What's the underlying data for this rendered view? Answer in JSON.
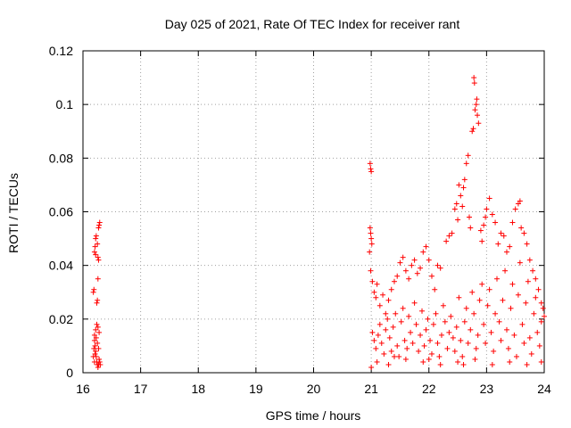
{
  "chart_data": {
    "type": "scatter",
    "title": "Day 025 of 2021, Rate Of TEC Index for receiver rant",
    "xlabel": "GPS time / hours",
    "ylabel": "ROTI / TECUs",
    "xlim": [
      16,
      24
    ],
    "ylim": [
      0,
      0.12
    ],
    "xticks": [
      16,
      17,
      18,
      19,
      20,
      21,
      22,
      23,
      24
    ],
    "yticks": [
      0,
      0.02,
      0.04,
      0.06,
      0.08,
      0.1,
      0.12
    ],
    "ytick_labels": [
      "0",
      "0.02",
      "0.04",
      "0.06",
      "0.08",
      "0.1",
      "0.12"
    ],
    "grid": true,
    "marker": "+",
    "color": "#ff0000",
    "series": [
      {
        "name": "ROTI",
        "points": [
          [
            16.18,
            0.03
          ],
          [
            16.19,
            0.031
          ],
          [
            16.2,
            0.045
          ],
          [
            16.21,
            0.047
          ],
          [
            16.22,
            0.05
          ],
          [
            16.23,
            0.051
          ],
          [
            16.22,
            0.044
          ],
          [
            16.25,
            0.048
          ],
          [
            16.26,
            0.043
          ],
          [
            16.27,
            0.042
          ],
          [
            16.28,
            0.055
          ],
          [
            16.29,
            0.056
          ],
          [
            16.27,
            0.054
          ],
          [
            16.24,
            0.026
          ],
          [
            16.25,
            0.027
          ],
          [
            16.26,
            0.035
          ],
          [
            16.2,
            0.012
          ],
          [
            16.21,
            0.01
          ],
          [
            16.22,
            0.008
          ],
          [
            16.23,
            0.006
          ],
          [
            16.24,
            0.004
          ],
          [
            16.25,
            0.003
          ],
          [
            16.26,
            0.002
          ],
          [
            16.27,
            0.003
          ],
          [
            16.28,
            0.005
          ],
          [
            16.2,
            0.014
          ],
          [
            16.22,
            0.016
          ],
          [
            16.24,
            0.018
          ],
          [
            16.26,
            0.017
          ],
          [
            16.28,
            0.015
          ],
          [
            16.19,
            0.009
          ],
          [
            16.21,
            0.007
          ],
          [
            16.23,
            0.013
          ],
          [
            16.25,
            0.011
          ],
          [
            16.27,
            0.009
          ],
          [
            16.29,
            0.004
          ],
          [
            16.3,
            0.003
          ],
          [
            16.18,
            0.006
          ],
          [
            16.2,
            0.004
          ],
          [
            20.98,
            0.078
          ],
          [
            20.99,
            0.076
          ],
          [
            21.0,
            0.075
          ],
          [
            20.98,
            0.054
          ],
          [
            20.99,
            0.052
          ],
          [
            21.0,
            0.05
          ],
          [
            21.01,
            0.048
          ],
          [
            20.97,
            0.045
          ],
          [
            20.99,
            0.038
          ],
          [
            21.02,
            0.034
          ],
          [
            21.05,
            0.03
          ],
          [
            21.08,
            0.028
          ],
          [
            21.1,
            0.033
          ],
          [
            21.15,
            0.025
          ],
          [
            21.2,
            0.029
          ],
          [
            21.25,
            0.022
          ],
          [
            21.3,
            0.027
          ],
          [
            21.35,
            0.031
          ],
          [
            21.4,
            0.034
          ],
          [
            21.45,
            0.036
          ],
          [
            21.5,
            0.041
          ],
          [
            21.55,
            0.043
          ],
          [
            21.6,
            0.038
          ],
          [
            21.65,
            0.035
          ],
          [
            21.7,
            0.04
          ],
          [
            21.75,
            0.042
          ],
          [
            21.8,
            0.037
          ],
          [
            21.85,
            0.039
          ],
          [
            21.9,
            0.045
          ],
          [
            21.95,
            0.047
          ],
          [
            22.0,
            0.042
          ],
          [
            22.05,
            0.036
          ],
          [
            22.1,
            0.031
          ],
          [
            22.15,
            0.04
          ],
          [
            22.2,
            0.039
          ],
          [
            22.3,
            0.049
          ],
          [
            22.35,
            0.051
          ],
          [
            22.4,
            0.052
          ],
          [
            22.45,
            0.061
          ],
          [
            22.48,
            0.063
          ],
          [
            22.5,
            0.057
          ],
          [
            22.52,
            0.07
          ],
          [
            22.55,
            0.066
          ],
          [
            22.58,
            0.062
          ],
          [
            22.6,
            0.069
          ],
          [
            22.62,
            0.072
          ],
          [
            22.65,
            0.078
          ],
          [
            22.68,
            0.081
          ],
          [
            22.7,
            0.058
          ],
          [
            22.72,
            0.054
          ],
          [
            22.75,
            0.09
          ],
          [
            22.77,
            0.091
          ],
          [
            22.8,
            0.098
          ],
          [
            22.82,
            0.1
          ],
          [
            22.83,
            0.102
          ],
          [
            22.84,
            0.096
          ],
          [
            22.78,
            0.11
          ],
          [
            22.79,
            0.108
          ],
          [
            22.86,
            0.093
          ],
          [
            22.9,
            0.053
          ],
          [
            22.92,
            0.049
          ],
          [
            22.95,
            0.055
          ],
          [
            22.98,
            0.058
          ],
          [
            23.0,
            0.061
          ],
          [
            23.05,
            0.065
          ],
          [
            23.1,
            0.059
          ],
          [
            23.15,
            0.056
          ],
          [
            23.2,
            0.048
          ],
          [
            23.25,
            0.052
          ],
          [
            23.3,
            0.051
          ],
          [
            23.35,
            0.045
          ],
          [
            23.4,
            0.047
          ],
          [
            23.45,
            0.056
          ],
          [
            23.5,
            0.061
          ],
          [
            23.55,
            0.063
          ],
          [
            23.58,
            0.064
          ],
          [
            23.6,
            0.054
          ],
          [
            23.65,
            0.052
          ],
          [
            23.7,
            0.048
          ],
          [
            23.75,
            0.042
          ],
          [
            23.8,
            0.038
          ],
          [
            23.85,
            0.035
          ],
          [
            23.9,
            0.031
          ],
          [
            23.95,
            0.026
          ],
          [
            24.0,
            0.021
          ],
          [
            21.02,
            0.015
          ],
          [
            21.05,
            0.012
          ],
          [
            21.08,
            0.009
          ],
          [
            21.12,
            0.014
          ],
          [
            21.15,
            0.018
          ],
          [
            21.18,
            0.011
          ],
          [
            21.22,
            0.007
          ],
          [
            21.25,
            0.016
          ],
          [
            21.28,
            0.02
          ],
          [
            21.32,
            0.013
          ],
          [
            21.35,
            0.008
          ],
          [
            21.38,
            0.017
          ],
          [
            21.42,
            0.022
          ],
          [
            21.45,
            0.01
          ],
          [
            21.48,
            0.006
          ],
          [
            21.52,
            0.019
          ],
          [
            21.55,
            0.024
          ],
          [
            21.58,
            0.012
          ],
          [
            21.62,
            0.009
          ],
          [
            21.65,
            0.021
          ],
          [
            21.68,
            0.015
          ],
          [
            21.72,
            0.011
          ],
          [
            21.75,
            0.026
          ],
          [
            21.78,
            0.018
          ],
          [
            21.82,
            0.008
          ],
          [
            21.85,
            0.014
          ],
          [
            21.88,
            0.023
          ],
          [
            21.92,
            0.01
          ],
          [
            21.95,
            0.016
          ],
          [
            21.98,
            0.02
          ],
          [
            22.02,
            0.012
          ],
          [
            22.05,
            0.007
          ],
          [
            22.08,
            0.018
          ],
          [
            22.12,
            0.022
          ],
          [
            22.15,
            0.011
          ],
          [
            22.18,
            0.006
          ],
          [
            22.22,
            0.014
          ],
          [
            22.25,
            0.025
          ],
          [
            22.28,
            0.019
          ],
          [
            22.32,
            0.009
          ],
          [
            22.35,
            0.015
          ],
          [
            22.38,
            0.021
          ],
          [
            22.42,
            0.013
          ],
          [
            22.45,
            0.008
          ],
          [
            22.48,
            0.017
          ],
          [
            22.52,
            0.028
          ],
          [
            22.55,
            0.012
          ],
          [
            22.58,
            0.006
          ],
          [
            22.62,
            0.019
          ],
          [
            22.65,
            0.024
          ],
          [
            22.68,
            0.011
          ],
          [
            22.72,
            0.016
          ],
          [
            22.75,
            0.03
          ],
          [
            22.78,
            0.022
          ],
          [
            22.82,
            0.009
          ],
          [
            22.85,
            0.014
          ],
          [
            22.88,
            0.027
          ],
          [
            22.92,
            0.033
          ],
          [
            22.95,
            0.018
          ],
          [
            22.98,
            0.011
          ],
          [
            23.02,
            0.025
          ],
          [
            23.05,
            0.031
          ],
          [
            23.08,
            0.015
          ],
          [
            23.12,
            0.008
          ],
          [
            23.15,
            0.022
          ],
          [
            23.18,
            0.035
          ],
          [
            23.22,
            0.019
          ],
          [
            23.25,
            0.012
          ],
          [
            23.28,
            0.027
          ],
          [
            23.32,
            0.038
          ],
          [
            23.35,
            0.016
          ],
          [
            23.38,
            0.009
          ],
          [
            23.42,
            0.024
          ],
          [
            23.45,
            0.033
          ],
          [
            23.48,
            0.014
          ],
          [
            23.52,
            0.006
          ],
          [
            23.55,
            0.029
          ],
          [
            23.58,
            0.041
          ],
          [
            23.62,
            0.018
          ],
          [
            23.65,
            0.011
          ],
          [
            23.68,
            0.026
          ],
          [
            23.72,
            0.034
          ],
          [
            23.75,
            0.013
          ],
          [
            23.78,
            0.007
          ],
          [
            23.82,
            0.022
          ],
          [
            23.85,
            0.028
          ],
          [
            23.88,
            0.015
          ],
          [
            23.92,
            0.01
          ],
          [
            23.95,
            0.019
          ],
          [
            23.98,
            0.024
          ],
          [
            21.1,
            0.004
          ],
          [
            21.3,
            0.003
          ],
          [
            21.6,
            0.005
          ],
          [
            21.9,
            0.004
          ],
          [
            22.2,
            0.003
          ],
          [
            22.5,
            0.004
          ],
          [
            22.8,
            0.005
          ],
          [
            23.1,
            0.003
          ],
          [
            23.4,
            0.004
          ],
          [
            23.7,
            0.003
          ],
          [
            23.95,
            0.004
          ],
          [
            21.0,
            0.002
          ],
          [
            21.4,
            0.006
          ],
          [
            22.0,
            0.005
          ],
          [
            22.6,
            0.003
          ]
        ]
      }
    ]
  }
}
